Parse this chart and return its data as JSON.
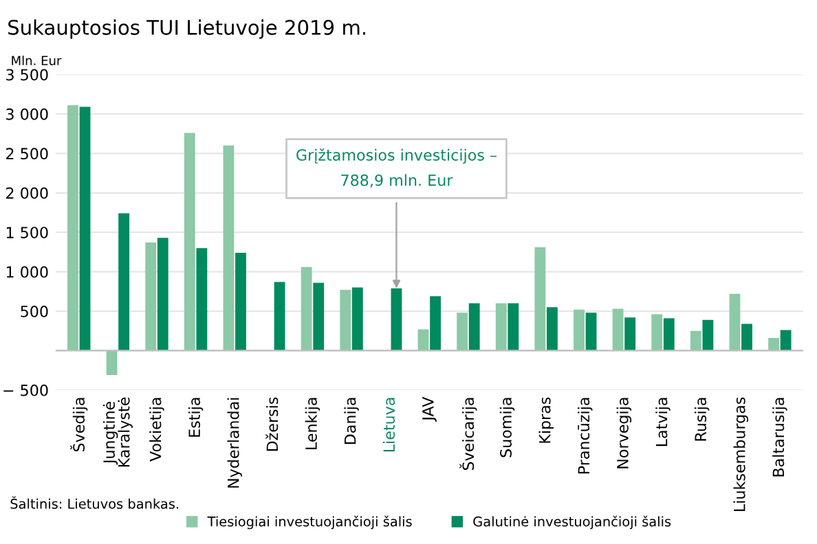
{
  "chart_data": {
    "type": "bar",
    "title": "Sukauptosios TUI Lietuvoje 2019 m.",
    "ylabel": "Mln. Eur",
    "categories": [
      "Švedija",
      "Jungtinė\nKaralystė",
      "Vokietija",
      "Estija",
      "Nyderlandai",
      "Džersis",
      "Lenkija",
      "Danija",
      "Lietuva",
      "JAV",
      "Šveicarija",
      "Suomija",
      "Kipras",
      "Prancūzija",
      "Norvegija",
      "Latvija",
      "Rusija",
      "Liuksemburgas",
      "Baltarusija"
    ],
    "series": [
      {
        "name": "Tiesiogiai investuojančioji šalis",
        "color": "#8cc9a6",
        "values": [
          3110,
          -310,
          1370,
          2760,
          2600,
          null,
          1060,
          770,
          null,
          270,
          480,
          600,
          1310,
          520,
          530,
          460,
          250,
          720,
          160
        ]
      },
      {
        "name": "Galutinė investuojančioji šalis",
        "color": "#008a5e",
        "values": [
          3090,
          1740,
          1430,
          1300,
          1240,
          870,
          860,
          800,
          788.9,
          690,
          600,
          600,
          550,
          480,
          420,
          410,
          390,
          340,
          260
        ]
      }
    ],
    "ylim": [
      -500,
      3500
    ],
    "yticks": [
      {
        "value": -500,
        "label": "− 500"
      },
      {
        "value": 0,
        "label": null
      },
      {
        "value": 500,
        "label": "500"
      },
      {
        "value": 1000,
        "label": "1 000"
      },
      {
        "value": 1500,
        "label": "1 500"
      },
      {
        "value": 2000,
        "label": "2 000"
      },
      {
        "value": 2500,
        "label": "2 500"
      },
      {
        "value": 3000,
        "label": "3 000"
      },
      {
        "value": 3500,
        "label": "3 500"
      }
    ],
    "grid": "y",
    "legend": "bottom",
    "annotations": [
      {
        "text": "Grįžtamosios investicijos –\n788,9 mln. Eur",
        "x": "Lietuva",
        "y": 788.9
      },
      "Šaltinis: Lietuvos bankas."
    ]
  }
}
